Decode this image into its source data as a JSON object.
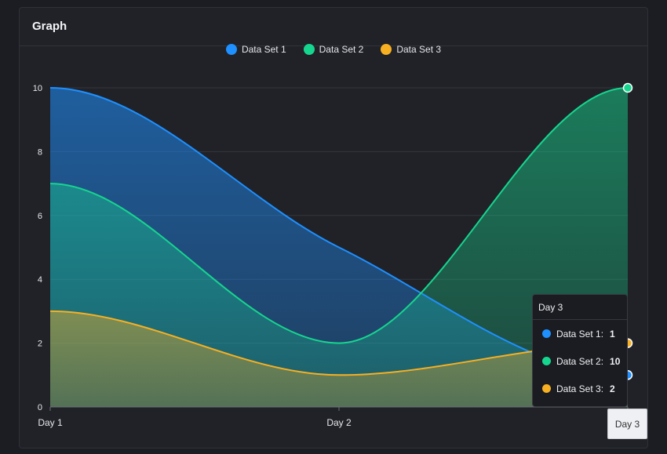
{
  "card": {
    "title": "Graph"
  },
  "chart_data": {
    "type": "area",
    "categories": [
      "Day 1",
      "Day 2",
      "Day 3"
    ],
    "series": [
      {
        "name": "Data Set 1",
        "color": "#1e90ff",
        "values": [
          10,
          5,
          1
        ]
      },
      {
        "name": "Data Set 2",
        "color": "#16d68f",
        "values": [
          7,
          2,
          10
        ]
      },
      {
        "name": "Data Set 3",
        "color": "#f7b022",
        "values": [
          3,
          1,
          2
        ]
      }
    ],
    "ylim": [
      0,
      10
    ],
    "yticks": [
      0,
      2,
      4,
      6,
      8,
      10
    ],
    "grid": true,
    "legend_position": "top-center"
  },
  "tooltip": {
    "title": "Day 3",
    "rows": [
      {
        "label": "Data Set 1:",
        "value": "1"
      },
      {
        "label": "Data Set 2:",
        "value": "10"
      },
      {
        "label": "Data Set 3:",
        "value": "2"
      }
    ]
  },
  "crosshair_label": "Day 3"
}
